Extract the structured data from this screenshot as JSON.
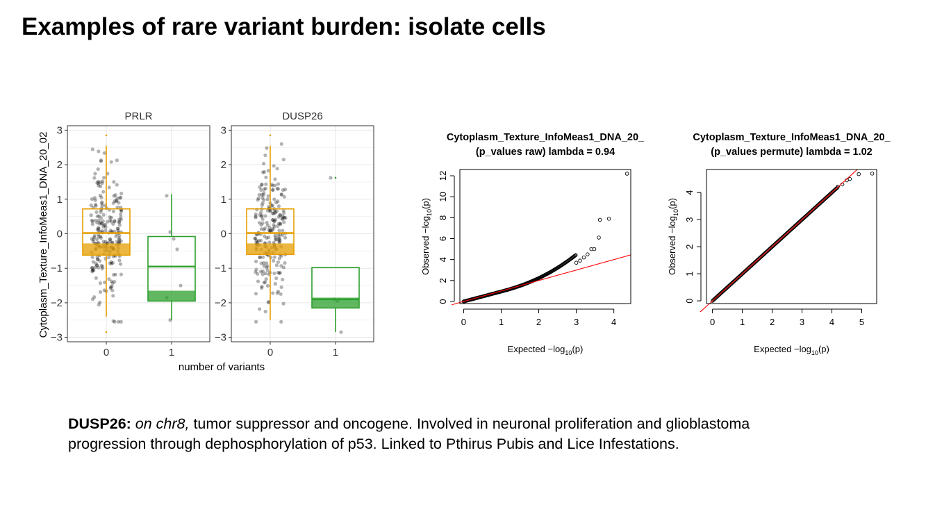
{
  "slide": {
    "title": "Examples of rare variant burden: isolate cells"
  },
  "caption": {
    "gene": "DUSP26:",
    "location": "on chr8,",
    "text_line1": " tumor suppressor and oncogene. Involved in neuronal proliferation and glioblastoma",
    "text_line2": "progression through dephosphorylation of p53. Linked to Pthirus Pubis and Lice Infestations."
  },
  "colors": {
    "group0": "#E69F00",
    "group1": "#2CA02C",
    "points": "#000000",
    "diag": "#FF0000"
  },
  "chart_data": [
    {
      "type": "boxplot",
      "facets": [
        "PRLR",
        "DUSP26"
      ],
      "xlabel": "number of variants",
      "ylabel": "Cytoplasm_Texture_InfoMeas1_DNA_20_02",
      "categories": [
        "0",
        "1"
      ],
      "yticks": [
        "3",
        "2",
        "1",
        "0",
        "−1",
        "−2",
        "−3"
      ],
      "ylim": [
        -3,
        3
      ],
      "grid": true,
      "boxes": {
        "PRLR": [
          {
            "group": "0",
            "q1": -0.62,
            "median": 0.02,
            "q3": 0.72,
            "whisker_low": -2.4,
            "whisker_high": 2.55,
            "outliers": [
              2.85,
              -2.85
            ]
          },
          {
            "group": "1",
            "q1": -1.95,
            "median": -0.95,
            "q3": -0.08,
            "whisker_low": -2.5,
            "whisker_high": 1.15,
            "outliers": []
          }
        ],
        "DUSP26": [
          {
            "group": "0",
            "q1": -0.6,
            "median": 0.02,
            "q3": 0.72,
            "whisker_low": -2.5,
            "whisker_high": 2.55,
            "outliers": [
              2.85
            ]
          },
          {
            "group": "1",
            "q1": -2.15,
            "median": -1.9,
            "q3": -0.98,
            "whisker_low": -2.85,
            "whisker_high": -0.98,
            "outliers": [
              1.62
            ]
          }
        ]
      },
      "jitter_points_group1": {
        "PRLR": [
          1.1,
          0.05,
          -0.15,
          -0.45,
          -1.5,
          -1.85,
          -2.5
        ],
        "DUSP26": [
          1.62,
          -1.9,
          -1.95,
          -2.85
        ]
      }
    },
    {
      "type": "scatter",
      "title": "Cytoplasm_Texture_InfoMeas1_DNA_20_",
      "subtitle": "(p_values raw) lambda = 0.94",
      "xlabel": "Expected",
      "ylabel": "Observed",
      "xticks": [
        0,
        1,
        2,
        3,
        4
      ],
      "yticks": [
        0,
        2,
        4,
        6,
        8,
        10,
        12
      ],
      "xlim": [
        -0.1,
        4.45
      ],
      "ylim": [
        -0.2,
        12.6
      ],
      "lambda": 0.94,
      "diagonal_slope": 1.0,
      "tail_points": [
        [
          3.0,
          3.7
        ],
        [
          3.1,
          3.9
        ],
        [
          3.2,
          4.2
        ],
        [
          3.3,
          4.5
        ],
        [
          3.4,
          5.0
        ],
        [
          3.48,
          5.0
        ],
        [
          3.6,
          6.1
        ],
        [
          3.63,
          7.8
        ],
        [
          3.87,
          7.9
        ],
        [
          4.35,
          12.2
        ]
      ]
    },
    {
      "type": "scatter",
      "title": "Cytoplasm_Texture_InfoMeas1_DNA_20_",
      "subtitle": "(p_values permute) lambda = 1.02",
      "xlabel": "Expected",
      "ylabel": "Observed",
      "xticks": [
        0,
        1,
        2,
        3,
        4,
        5
      ],
      "yticks": [
        0,
        1,
        2,
        3,
        4
      ],
      "xlim": [
        -0.2,
        5.5
      ],
      "ylim": [
        -0.1,
        4.85
      ],
      "lambda": 1.02,
      "diagonal_slope": 1.0,
      "tail_points": [
        [
          4.2,
          4.22
        ],
        [
          4.35,
          4.3
        ],
        [
          4.5,
          4.45
        ],
        [
          4.6,
          4.5
        ],
        [
          4.9,
          4.68
        ],
        [
          5.35,
          4.7
        ]
      ]
    }
  ]
}
